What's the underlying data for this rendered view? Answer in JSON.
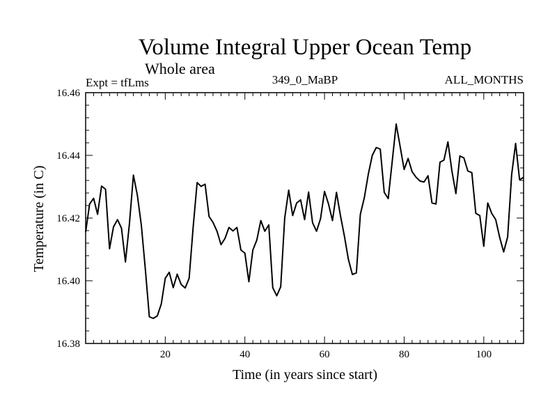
{
  "chart_data": {
    "type": "line",
    "title": "Volume Integral Upper Ocean Temp",
    "subtitle": "Whole area",
    "left_label": "Expt = tfLms",
    "center_label": "349_0_MaBP",
    "right_label": "ALL_MONTHS",
    "xlabel": "Time (in years since start)",
    "ylabel": "Temperature (in C)",
    "xlim": [
      0,
      110
    ],
    "ylim": [
      16.38,
      16.46
    ],
    "x_ticks": [
      20,
      40,
      60,
      80,
      100
    ],
    "x_tick_labels": [
      "20",
      "40",
      "60",
      "80",
      "100"
    ],
    "y_ticks": [
      16.38,
      16.4,
      16.42,
      16.44,
      16.46
    ],
    "y_tick_labels": [
      "16.38",
      "16.40",
      "16.42",
      "16.44",
      "16.46"
    ],
    "grid": false,
    "series": [
      {
        "name": "Temperature",
        "color": "#000000",
        "x": [
          0,
          1,
          2,
          3,
          4,
          5,
          6,
          7,
          8,
          9,
          10,
          11,
          12,
          13,
          14,
          15,
          16,
          17,
          18,
          19,
          20,
          21,
          22,
          23,
          24,
          25,
          26,
          27,
          28,
          29,
          30,
          31,
          32,
          33,
          34,
          35,
          36,
          37,
          38,
          39,
          40,
          41,
          42,
          43,
          44,
          45,
          46,
          47,
          48,
          49,
          50,
          51,
          52,
          53,
          54,
          55,
          56,
          57,
          58,
          59,
          60,
          61,
          62,
          63,
          64,
          65,
          66,
          67,
          68,
          69,
          70,
          71,
          72,
          73,
          74,
          75,
          76,
          77,
          78,
          79,
          80,
          81,
          82,
          83,
          84,
          85,
          86,
          87,
          88,
          89,
          90,
          91,
          92,
          93,
          94,
          95,
          96,
          97,
          98,
          99,
          100,
          101,
          102,
          103,
          104,
          105,
          106,
          107,
          108,
          109,
          110
        ],
        "values": [
          16.4155,
          16.4245,
          16.4263,
          16.4212,
          16.4302,
          16.4292,
          16.4102,
          16.4172,
          16.4195,
          16.4168,
          16.406,
          16.4182,
          16.4337,
          16.4272,
          16.4176,
          16.4036,
          16.3885,
          16.388,
          16.3888,
          16.3926,
          16.4008,
          16.4027,
          16.3978,
          16.4021,
          16.3988,
          16.3977,
          16.4008,
          16.417,
          16.4313,
          16.4301,
          16.4308,
          16.4205,
          16.4186,
          16.4158,
          16.4115,
          16.4135,
          16.417,
          16.4159,
          16.417,
          16.4098,
          16.4088,
          16.3997,
          16.4098,
          16.413,
          16.4192,
          16.4158,
          16.4178,
          16.3978,
          16.3952,
          16.3981,
          16.42,
          16.4289,
          16.4208,
          16.4248,
          16.4258,
          16.4195,
          16.4283,
          16.4185,
          16.4158,
          16.4198,
          16.4285,
          16.4245,
          16.4192,
          16.4282,
          16.4208,
          16.4142,
          16.4068,
          16.402,
          16.4025,
          16.4212,
          16.4265,
          16.434,
          16.44,
          16.4425,
          16.442,
          16.4282,
          16.4262,
          16.438,
          16.45,
          16.4428,
          16.4355,
          16.439,
          16.4348,
          16.433,
          16.4318,
          16.4315,
          16.4335,
          16.4248,
          16.4245,
          16.4378,
          16.4385,
          16.4443,
          16.435,
          16.4278,
          16.4398,
          16.4392,
          16.435,
          16.4345,
          16.4215,
          16.4208,
          16.411,
          16.4248,
          16.4215,
          16.4195,
          16.4138,
          16.4092,
          16.414,
          16.4338,
          16.4438,
          16.4322,
          16.433
        ]
      }
    ]
  }
}
